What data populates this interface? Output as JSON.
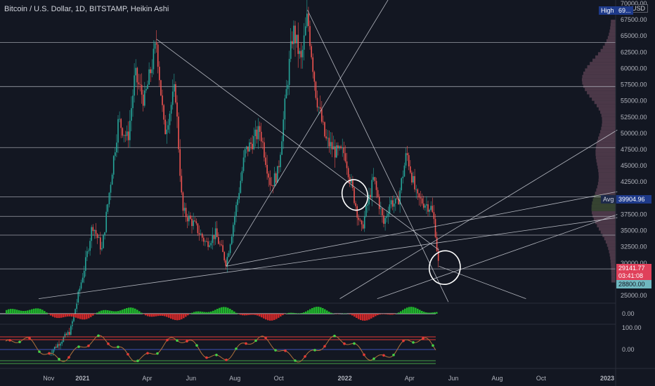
{
  "header": {
    "title": "Bitcoin / U.S. Dollar, 1D, BITSTAMP, Heikin Ashi",
    "currency": "USD"
  },
  "badges": {
    "high_label": "High",
    "high_value": "69...",
    "avg_label": "Avg",
    "avg_value": "39904.96",
    "last_price": "29141.77",
    "countdown": "03:41:08",
    "low_line_price": "28800.00"
  },
  "colors": {
    "background": "#131722",
    "up": "#26a69a",
    "down": "#ef5350",
    "grid_line": "#b2b5be",
    "trend_line": "#d1d4dc",
    "last_price_bg": "#e0405a",
    "low_line_bg": "#6fb8c0",
    "high_badge_bg": "#1e3a8a"
  },
  "chart_data": {
    "type": "candlestick",
    "title": "Bitcoin / U.S. Dollar, 1D, BITSTAMP, Heikin Ashi",
    "x_axis": {
      "tick_labels": [
        "Nov",
        "2021",
        "Apr",
        "Jun",
        "Aug",
        "Oct",
        "2022",
        "Apr",
        "Jun",
        "Aug",
        "Oct",
        "2023"
      ]
    },
    "price_axis": {
      "ticks": [
        "70000.00",
        "67500.00",
        "65000.00",
        "62500.00",
        "60000.00",
        "57500.00",
        "55000.00",
        "52500.00",
        "50000.00",
        "47500.00",
        "45000.00",
        "42500.00",
        "40000.00",
        "37500.00",
        "35000.00",
        "32500.00",
        "30000.00",
        "27500.00",
        "25000.00"
      ],
      "range": [
        24000,
        71000
      ]
    },
    "horizontal_levels": [
      64000,
      57200,
      47800,
      40200,
      37200,
      34300,
      29100
    ],
    "price_path": [
      [
        "2020-11-15",
        16000
      ],
      [
        "2020-12-15",
        19500
      ],
      [
        "2021-01-05",
        30000
      ],
      [
        "2021-01-15",
        36000
      ],
      [
        "2021-01-28",
        32000
      ],
      [
        "2021-02-20",
        52000
      ],
      [
        "2021-03-05",
        49000
      ],
      [
        "2021-03-15",
        59000
      ],
      [
        "2021-03-28",
        55000
      ],
      [
        "2021-04-14",
        64000
      ],
      [
        "2021-04-25",
        50000
      ],
      [
        "2021-05-10",
        57000
      ],
      [
        "2021-05-20",
        38000
      ],
      [
        "2021-06-05",
        36000
      ],
      [
        "2021-06-22",
        33000
      ],
      [
        "2021-07-05",
        34500
      ],
      [
        "2021-07-20",
        30000
      ],
      [
        "2021-08-05",
        40000
      ],
      [
        "2021-08-15",
        47000
      ],
      [
        "2021-09-05",
        50500
      ],
      [
        "2021-09-20",
        42000
      ],
      [
        "2021-09-30",
        44000
      ],
      [
        "2021-10-15",
        60000
      ],
      [
        "2021-10-21",
        66000
      ],
      [
        "2021-11-01",
        61000
      ],
      [
        "2021-11-10",
        68000
      ],
      [
        "2021-11-22",
        56000
      ],
      [
        "2021-12-05",
        49000
      ],
      [
        "2021-12-20",
        47000
      ],
      [
        "2022-01-01",
        47000
      ],
      [
        "2022-01-10",
        42000
      ],
      [
        "2022-01-24",
        35000
      ],
      [
        "2022-02-10",
        43000
      ],
      [
        "2022-02-24",
        36000
      ],
      [
        "2022-03-05",
        39500
      ],
      [
        "2022-03-15",
        39000
      ],
      [
        "2022-03-28",
        47000
      ],
      [
        "2022-04-11",
        40000
      ],
      [
        "2022-04-25",
        39000
      ],
      [
        "2022-05-01",
        38500
      ],
      [
        "2022-05-06",
        36000
      ],
      [
        "2022-05-10",
        31000
      ],
      [
        "2022-05-12",
        29100
      ]
    ],
    "trend_lines": [
      {
        "from": [
          "2021-04-14",
          64500
        ],
        "to": [
          "2022-05-12",
          32000
        ]
      },
      {
        "from": [
          "2021-11-10",
          69000
        ],
        "to": [
          "2022-05-25",
          24000
        ]
      },
      {
        "from": [
          "2021-07-20",
          29500
        ],
        "to": [
          "2022-03-10",
          72000
        ]
      },
      {
        "from": [
          "2020-11-01",
          24500
        ],
        "to": [
          "2023-01-15",
          37000
        ]
      },
      {
        "from": [
          "2021-07-20",
          29500
        ],
        "to": [
          "2023-01-15",
          41000
        ]
      },
      {
        "from": [
          "2021-12-25",
          24500
        ],
        "to": [
          "2023-01-15",
          50500
        ]
      },
      {
        "from": [
          "2022-02-15",
          24500
        ],
        "to": [
          "2023-01-15",
          37500
        ]
      },
      {
        "from": [
          "2022-05-12",
          29500
        ],
        "to": [
          "2022-09-10",
          24500
        ]
      }
    ],
    "annotations": [
      {
        "type": "ellipse",
        "center": [
          "2022-01-15",
          40500
        ]
      },
      {
        "type": "ellipse",
        "center": [
          "2022-05-20",
          29300
        ]
      }
    ],
    "volume_profile": {
      "price_range": [
        27000,
        67000
      ],
      "peak_prices": [
        58000,
        38000,
        47000
      ]
    },
    "oscillator_1": {
      "tick_labels": [
        "0.00"
      ]
    },
    "oscillator_2": {
      "tick_labels": [
        "100.00",
        "0.00"
      ],
      "levels": [
        "upper-red",
        "mid-blue",
        "lower-green"
      ]
    }
  }
}
